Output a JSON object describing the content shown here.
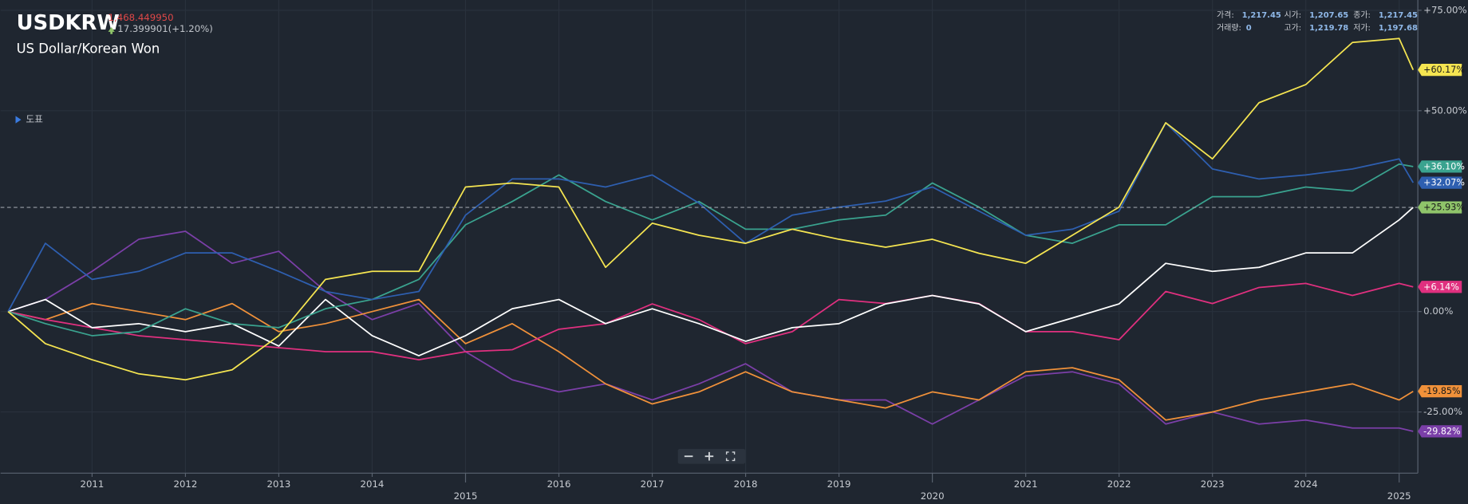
{
  "chart_data": {
    "type": "line",
    "title": "USDKRW",
    "price": "1,468.449950",
    "change": "17.399901(+1.20%)",
    "subtitle": "US Dollar/Korean Won",
    "menu": "도표",
    "info": [
      {
        "label": "가격:",
        "value": "1,217.45"
      },
      {
        "label": "시가:",
        "value": "1,207.65"
      },
      {
        "label": "종가:",
        "value": "1,217.45"
      },
      {
        "label": "거래량:",
        "value": "0"
      },
      {
        "label": "고가:",
        "value": "1,219.78"
      },
      {
        "label": "저가:",
        "value": "1,197.68"
      }
    ],
    "xlim": [
      2010.02,
      2025.2
    ],
    "xticks": [
      2011,
      2012,
      2013,
      2014,
      2015,
      2016,
      2017,
      2018,
      2019,
      2020,
      2021,
      2022,
      2023,
      2024,
      2025
    ],
    "ylim": [
      -40.23,
      77.56
    ],
    "yticks": [
      {
        "value": 75,
        "label": "+75.00%"
      },
      {
        "value": 50,
        "label": "+50.00%"
      },
      {
        "value": 0,
        "label": "0.00%"
      },
      {
        "value": -25,
        "label": "-25.00%"
      }
    ],
    "grid": true,
    "x": [
      2010.1,
      2010.5,
      2011,
      2011.5,
      2012,
      2012.5,
      2013,
      2013.5,
      2014,
      2014.5,
      2015,
      2015.5,
      2016,
      2016.5,
      2017,
      2017.5,
      2018,
      2018.5,
      2019,
      2019.5,
      2020,
      2020.5,
      2021,
      2021.5,
      2022,
      2022.5,
      2023,
      2023.5,
      2024,
      2024.5,
      2025,
      2025.15
    ],
    "series": [
      {
        "color": "#7b3fa8",
        "values": [
          0,
          3,
          10,
          18,
          20,
          12,
          15,
          5,
          -2,
          2,
          -10,
          -17,
          -20,
          -18,
          -22,
          -18,
          -13,
          -20,
          -22,
          -22,
          -28,
          -22,
          -16,
          -15,
          -18,
          -28,
          -25,
          -28,
          -27,
          -29,
          -29,
          -29.82
        ],
        "value_labels": [
          null,
          null,
          null,
          null,
          null,
          null,
          null,
          null,
          null,
          null,
          null,
          null,
          null,
          null,
          null,
          null,
          null,
          null,
          null,
          null,
          null,
          null,
          null,
          null,
          null,
          null,
          null,
          null,
          null,
          null,
          null,
          "-29.82%"
        ]
      },
      {
        "color": "#f0913a",
        "values": [
          0,
          -2,
          2,
          0,
          -2,
          2,
          -5,
          -3,
          0,
          3,
          -8,
          -3,
          -10,
          -18,
          -23,
          -20,
          -15,
          -20,
          -22,
          -24,
          -20,
          -22,
          -15,
          -14,
          -17,
          -27,
          -25,
          -22,
          -20,
          -18,
          -22,
          -19.85
        ],
        "value_labels": [
          null,
          null,
          null,
          null,
          null,
          null,
          null,
          null,
          null,
          null,
          null,
          null,
          null,
          null,
          null,
          null,
          null,
          null,
          null,
          null,
          null,
          null,
          null,
          null,
          null,
          null,
          null,
          null,
          null,
          null,
          null,
          "-19.85%"
        ]
      },
      {
        "color": "#e0307f",
        "values": [
          0,
          -2,
          -4,
          -6,
          -7,
          -8,
          -9,
          -10,
          -10,
          -12,
          -10,
          -9.5,
          -4.4,
          -3,
          1.9,
          -2,
          -8,
          -5,
          3,
          2,
          4,
          2,
          -5,
          -5,
          -7,
          5,
          2,
          6,
          7,
          4,
          7,
          6.14
        ],
        "value_labels": [
          null,
          null,
          null,
          null,
          null,
          null,
          null,
          null,
          null,
          null,
          null,
          null,
          null,
          null,
          null,
          null,
          null,
          null,
          null,
          null,
          null,
          null,
          null,
          null,
          null,
          null,
          null,
          null,
          null,
          null,
          null,
          "+6.14%"
        ]
      },
      {
        "color": "#ffffff",
        "badge_color": "#8fc46a",
        "values": [
          0,
          3,
          -4,
          -3,
          -5,
          -3,
          -8.6,
          3,
          -6,
          -11,
          -6,
          0.7,
          3,
          -3,
          0.7,
          -3,
          -7.4,
          -4,
          -3,
          1.9,
          4,
          1.9,
          -5,
          -1.6,
          1.9,
          12,
          10,
          11,
          14.6,
          14.6,
          22.8,
          25.93
        ],
        "value_labels": [
          null,
          null,
          null,
          null,
          null,
          null,
          null,
          null,
          null,
          null,
          null,
          null,
          null,
          null,
          null,
          null,
          null,
          null,
          null,
          null,
          null,
          null,
          null,
          null,
          null,
          null,
          null,
          null,
          null,
          null,
          null,
          "+25.93%"
        ]
      },
      {
        "color": "#3aa38f",
        "values": [
          0,
          -3,
          -6,
          -5,
          0.7,
          -3,
          -4,
          0.7,
          3,
          8,
          21.6,
          27.4,
          34,
          27.4,
          22.8,
          27.4,
          20.5,
          20.5,
          22.8,
          24,
          32,
          26,
          19,
          17,
          21.6,
          21.6,
          28.6,
          28.6,
          31,
          30,
          36.7,
          36.1
        ],
        "value_labels": [
          null,
          null,
          null,
          null,
          null,
          null,
          null,
          null,
          null,
          null,
          null,
          null,
          null,
          null,
          null,
          null,
          null,
          null,
          null,
          null,
          null,
          null,
          null,
          null,
          null,
          null,
          null,
          null,
          null,
          null,
          null,
          "+36.10%"
        ]
      },
      {
        "color": "#2e5fb0",
        "values": [
          0,
          17,
          8,
          10,
          14.6,
          14.6,
          10,
          5,
          3,
          5,
          24,
          33,
          33,
          31,
          34,
          27,
          17,
          24,
          26,
          27.5,
          31,
          25,
          19,
          20.5,
          25,
          47,
          35.5,
          33,
          34,
          35.5,
          38,
          32.07
        ],
        "value_labels": [
          null,
          null,
          null,
          null,
          null,
          null,
          null,
          null,
          null,
          null,
          null,
          null,
          null,
          null,
          null,
          null,
          null,
          null,
          null,
          null,
          null,
          null,
          null,
          null,
          null,
          null,
          null,
          null,
          null,
          null,
          null,
          "+32.07%"
        ]
      },
      {
        "color": "#f5e551",
        "values": [
          0,
          -8,
          -12,
          -15.5,
          -17,
          -14.5,
          -6,
          8,
          10,
          10,
          31,
          32,
          31,
          11,
          22,
          19,
          17,
          20.5,
          18,
          16,
          18,
          14.5,
          12,
          19,
          26,
          47,
          38,
          52,
          56.5,
          67,
          68,
          60.17
        ],
        "value_labels": [
          null,
          null,
          null,
          null,
          null,
          null,
          null,
          null,
          null,
          null,
          null,
          null,
          null,
          null,
          null,
          null,
          null,
          null,
          null,
          null,
          null,
          null,
          null,
          null,
          null,
          null,
          null,
          null,
          null,
          null,
          null,
          "+60.17%"
        ]
      }
    ]
  }
}
